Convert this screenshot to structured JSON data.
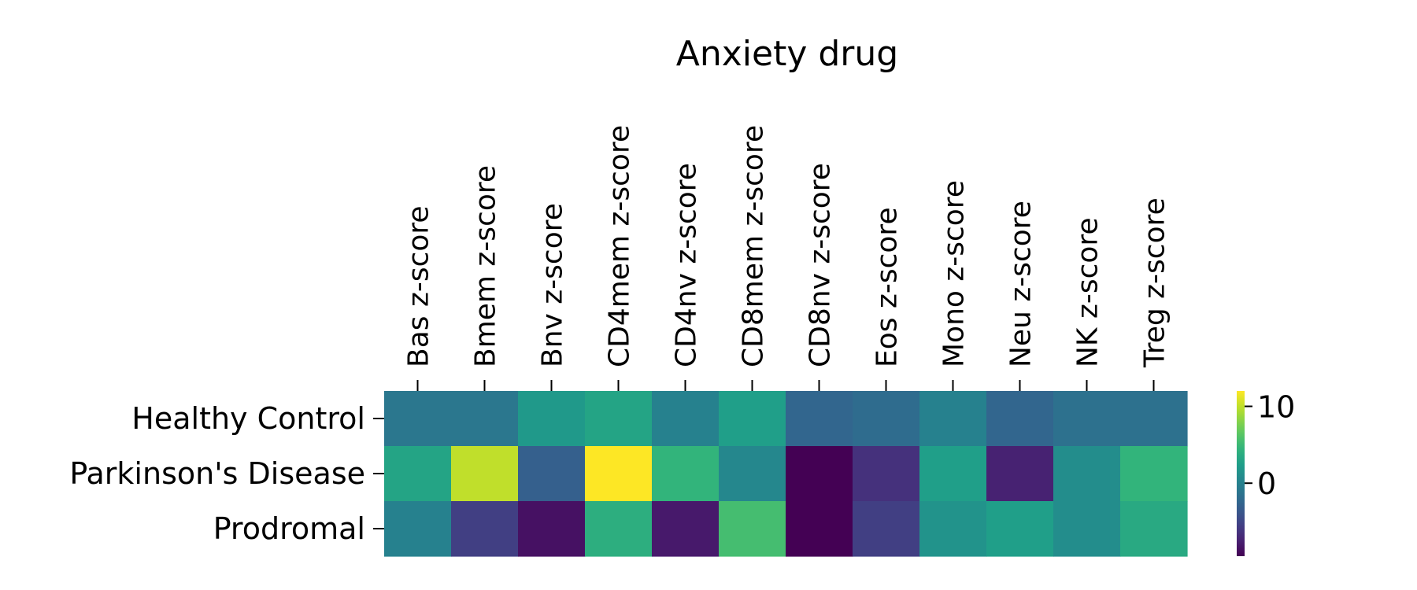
{
  "chart_data": {
    "type": "heatmap",
    "title": "Anxiety drug",
    "columns": [
      "Bas z-score",
      "Bmem z-score",
      "Bnv z-score",
      "CD4mem z-score",
      "CD4nv z-score",
      "CD8mem z-score",
      "CD8nv z-score",
      "Eos z-score",
      "Mono z-score",
      "Neu z-score",
      "NK z-score",
      "Treg z-score"
    ],
    "rows": [
      "Healthy Control",
      "Parkinson's Disease",
      "Prodromal"
    ],
    "values": [
      [
        -1.0,
        -1.0,
        2.0,
        3.0,
        0.0,
        2.5,
        -2.5,
        -2.0,
        0.0,
        -2.5,
        -1.5,
        -1.5
      ],
      [
        3.0,
        10.0,
        -3.0,
        12.0,
        4.5,
        0.5,
        -9.5,
        -6.5,
        2.5,
        -7.5,
        1.0,
        4.5
      ],
      [
        0.0,
        -5.5,
        -8.5,
        4.0,
        -8.0,
        5.5,
        -9.5,
        -5.5,
        1.5,
        2.5,
        1.0,
        3.5
      ]
    ],
    "colormap": "viridis",
    "colorbar": {
      "vmin": -9.5,
      "vmax": 12.0,
      "ticks": [
        10,
        0
      ]
    },
    "x_ticks_position": "top",
    "grid": false
  }
}
